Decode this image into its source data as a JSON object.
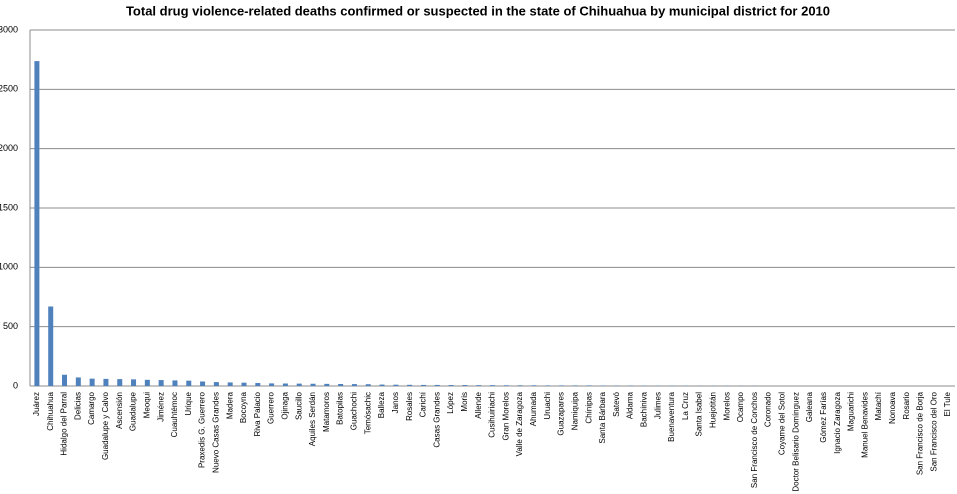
{
  "chart_data": {
    "type": "bar",
    "title": "Total drug violence-related deaths confirmed or suspected in the state of Chihuahua by municipal district for 2010",
    "categories": [
      "Juárez",
      "Chihuahua",
      "Hidalgo del Parral",
      "Delicias",
      "Camargo",
      "Guadalupe y Calvo",
      "Ascensión",
      "Guadalupe",
      "Meoqui",
      "Jiménez",
      "Cuauhtémoc",
      "Urique",
      "Praxedis G. Guerrero",
      "Nuevo Casas Grandes",
      "Madera",
      "Bocoyna",
      "Riva Palacio",
      "Guerrero",
      "Ojinaga",
      "Saucillo",
      "Aquiles Serdán",
      "Matamoros",
      "Batopilas",
      "Guachochi",
      "Temósachic",
      "Balleza",
      "Janos",
      "Rosales",
      "Carichí",
      "Casas Grandes",
      "López",
      "Moris",
      "Allende",
      "Cusihuiriachi",
      "Gran Morelos",
      "Valle de Zaragoza",
      "Ahumada",
      "Uruachi",
      "Guazapares",
      "Namiquipa",
      "Chínipas",
      "Santa Bárbara",
      "Satevó",
      "Aldama",
      "Bachíniva",
      "Julimes",
      "Buenaventura",
      "La Cruz",
      "Santa Isabel",
      "Huejotitán",
      "Morelos",
      "Ocampo",
      "San Francisco de Conchos",
      "Coronado",
      "Coyame del Sotol",
      "Doctor Belisario Domínguez",
      "Galeana",
      "Gómez Farías",
      "Ignacio Zaragoza",
      "Maguarichi",
      "Manuel Benavides",
      "Matachí",
      "Nonoava",
      "Rosario",
      "San Francisco de Borja",
      "San Francisco del Oro",
      "El Tule"
    ],
    "values": [
      2738,
      670,
      95,
      72,
      62,
      60,
      58,
      56,
      52,
      50,
      47,
      45,
      38,
      33,
      30,
      28,
      25,
      22,
      21,
      20,
      19,
      18,
      17,
      16,
      15,
      12,
      11,
      10,
      9,
      9,
      8,
      8,
      7,
      7,
      6,
      6,
      6,
      5,
      5,
      5,
      5,
      4,
      4,
      4,
      3,
      3,
      3,
      3,
      2,
      2,
      2,
      2,
      2,
      0,
      0,
      0,
      0,
      0,
      0,
      0,
      0,
      0,
      0,
      0,
      0,
      0,
      0
    ],
    "color": "#4f81bd",
    "ylim": [
      0,
      3000
    ],
    "yticks": [
      0,
      500,
      1000,
      1500,
      2000,
      2500,
      3000
    ],
    "grid": true
  }
}
